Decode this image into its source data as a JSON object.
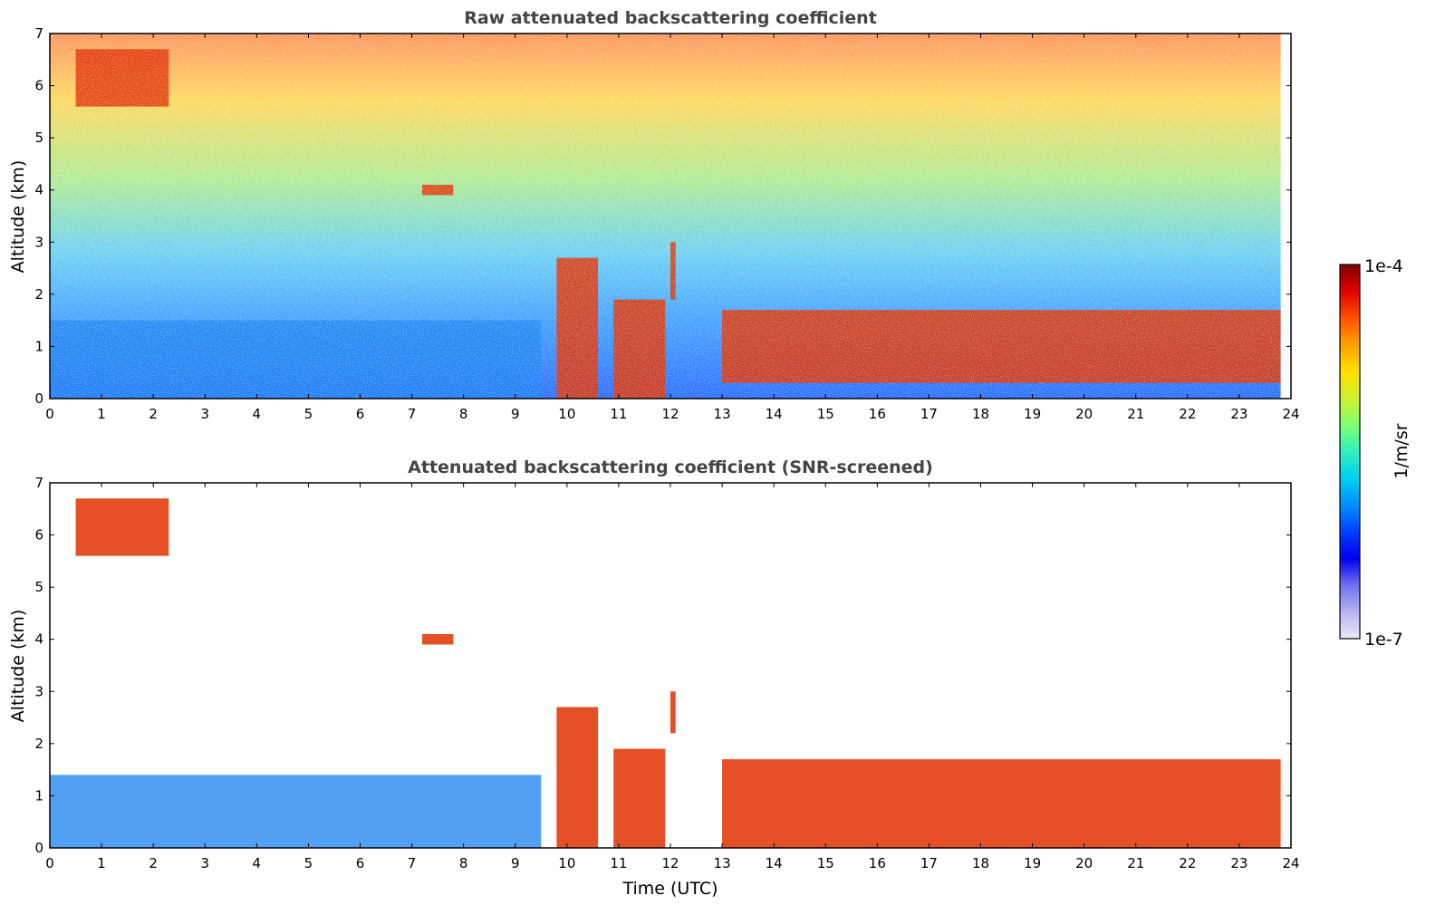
{
  "colorbar": {
    "max_label": "1e-4",
    "min_label": "1e-7",
    "unit_label": "1/m/sr",
    "colors": [
      "#e9e9f7",
      "#b4b4f0",
      "#7070f0",
      "#0000f0",
      "#0040ff",
      "#0090ff",
      "#00d0f0",
      "#30f0c0",
      "#80ff70",
      "#d0f030",
      "#ffe000",
      "#ffa000",
      "#ff5000",
      "#e00000",
      "#800000"
    ]
  },
  "chart_data": [
    {
      "type": "heatmap",
      "title": "Raw attenuated backscattering coefficient",
      "xlabel": "",
      "ylabel": "Altitude (km)",
      "xlim": [
        0,
        24
      ],
      "ylim": [
        0,
        7
      ],
      "xticks": [
        "0",
        "1",
        "2",
        "3",
        "4",
        "5",
        "6",
        "7",
        "8",
        "9",
        "10",
        "11",
        "12",
        "13",
        "14",
        "15",
        "16",
        "17",
        "18",
        "19",
        "20",
        "21",
        "22",
        "23",
        "24"
      ],
      "yticks": [
        "0",
        "1",
        "2",
        "3",
        "4",
        "5",
        "6",
        "7"
      ],
      "color_scale": "log",
      "vmin": 1e-07,
      "vmax": 0.0001,
      "features": [
        {
          "time": [
            9.8,
            10.6
          ],
          "altitude": [
            0.0,
            2.7
          ],
          "level": "high"
        },
        {
          "time": [
            10.9,
            11.9
          ],
          "altitude": [
            0.0,
            1.9
          ],
          "level": "high"
        },
        {
          "time": [
            12.0,
            12.1
          ],
          "altitude": [
            1.9,
            3.0
          ],
          "level": "high"
        },
        {
          "time": [
            13.0,
            23.8
          ],
          "altitude": [
            0.3,
            1.7
          ],
          "level": "high"
        },
        {
          "time": [
            0.5,
            2.3
          ],
          "altitude": [
            5.6,
            6.7
          ],
          "level": "high"
        },
        {
          "time": [
            7.2,
            7.8
          ],
          "altitude": [
            3.9,
            4.1
          ],
          "level": "high"
        },
        {
          "time": [
            0.0,
            9.5
          ],
          "altitude": [
            0.0,
            1.5
          ],
          "level": "medium"
        }
      ]
    },
    {
      "type": "heatmap",
      "title": "Attenuated backscattering coefficient (SNR-screened)",
      "xlabel": "Time (UTC)",
      "ylabel": "Altitude (km)",
      "xlim": [
        0,
        24
      ],
      "ylim": [
        0,
        7
      ],
      "xticks": [
        "0",
        "1",
        "2",
        "3",
        "4",
        "5",
        "6",
        "7",
        "8",
        "9",
        "10",
        "11",
        "12",
        "13",
        "14",
        "15",
        "16",
        "17",
        "18",
        "19",
        "20",
        "21",
        "22",
        "23",
        "24"
      ],
      "yticks": [
        "0",
        "1",
        "2",
        "3",
        "4",
        "5",
        "6",
        "7"
      ],
      "color_scale": "log",
      "vmin": 1e-07,
      "vmax": 0.0001,
      "features": [
        {
          "time": [
            9.8,
            10.6
          ],
          "altitude": [
            0.0,
            2.7
          ],
          "level": "high"
        },
        {
          "time": [
            10.9,
            11.9
          ],
          "altitude": [
            0.0,
            1.9
          ],
          "level": "high"
        },
        {
          "time": [
            12.0,
            12.1
          ],
          "altitude": [
            2.2,
            3.0
          ],
          "level": "high"
        },
        {
          "time": [
            13.0,
            23.8
          ],
          "altitude": [
            0.0,
            1.7
          ],
          "level": "high"
        },
        {
          "time": [
            0.5,
            2.3
          ],
          "altitude": [
            5.6,
            6.7
          ],
          "level": "high"
        },
        {
          "time": [
            7.2,
            7.8
          ],
          "altitude": [
            3.9,
            4.1
          ],
          "level": "high"
        },
        {
          "time": [
            0.0,
            9.5
          ],
          "altitude": [
            0.0,
            1.4
          ],
          "level": "medium"
        }
      ]
    }
  ]
}
